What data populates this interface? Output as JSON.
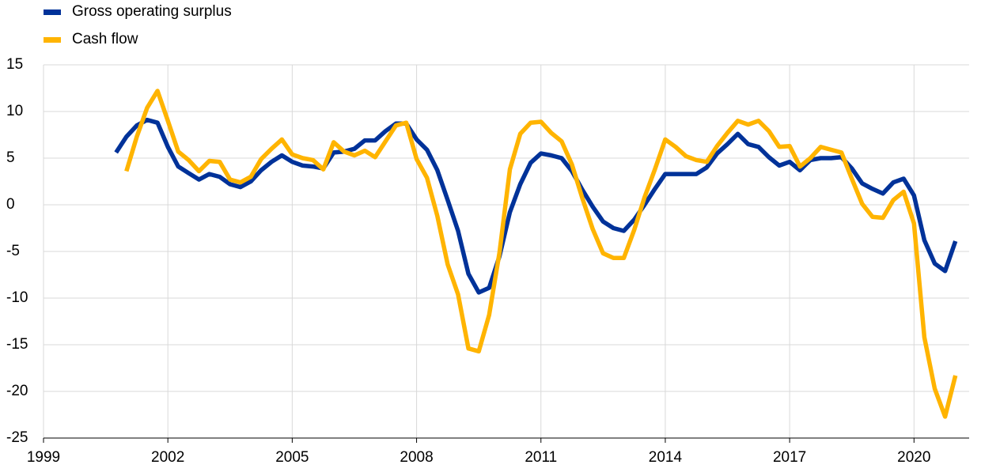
{
  "chart_data": {
    "type": "line",
    "x": [
      2000.75,
      2001,
      2001.25,
      2001.5,
      2001.75,
      2002,
      2002.25,
      2002.5,
      2002.75,
      2003,
      2003.25,
      2003.5,
      2003.75,
      2004,
      2004.25,
      2004.5,
      2004.75,
      2005,
      2005.25,
      2005.5,
      2005.75,
      2006,
      2006.25,
      2006.5,
      2006.75,
      2007,
      2007.25,
      2007.5,
      2007.75,
      2008,
      2008.25,
      2008.5,
      2008.75,
      2009,
      2009.25,
      2009.5,
      2009.75,
      2010,
      2010.25,
      2010.5,
      2010.75,
      2011,
      2011.25,
      2011.5,
      2011.75,
      2012,
      2012.25,
      2012.5,
      2012.75,
      2013,
      2013.25,
      2013.5,
      2013.75,
      2014,
      2014.25,
      2014.5,
      2014.75,
      2015,
      2015.25,
      2015.5,
      2015.75,
      2016,
      2016.25,
      2016.5,
      2016.75,
      2017,
      2017.25,
      2017.5,
      2017.75,
      2018,
      2018.25,
      2018.5,
      2018.75,
      2019,
      2019.25,
      2019.5,
      2019.75,
      2020,
      2020.25,
      2020.5,
      2020.75,
      2021
    ],
    "series": [
      {
        "name": "Gross operating surplus",
        "color": "#003299",
        "values": [
          5.6,
          7.3,
          8.5,
          9.1,
          8.8,
          6.2,
          4.1,
          3.4,
          2.7,
          3.3,
          3.0,
          2.2,
          1.9,
          2.5,
          3.7,
          4.6,
          5.3,
          4.6,
          4.2,
          4.1,
          3.9,
          5.6,
          5.7,
          6.0,
          6.9,
          6.9,
          7.9,
          8.7,
          8.7,
          7.0,
          5.9,
          3.7,
          0.5,
          -2.8,
          -7.4,
          -9.4,
          -8.9,
          -5.5,
          -0.8,
          2.2,
          4.5,
          5.5,
          5.3,
          5.0,
          3.6,
          1.6,
          -0.2,
          -1.8,
          -2.5,
          -2.8,
          -1.6,
          0.0,
          1.7,
          3.3,
          3.3,
          3.3,
          3.3,
          4.0,
          5.5,
          6.5,
          7.6,
          6.5,
          6.2,
          5.1,
          4.2,
          4.6,
          3.7,
          4.8,
          5.0,
          5.0,
          5.1,
          3.9,
          2.3,
          1.7,
          1.2,
          2.4,
          2.8,
          1.0,
          -3.8,
          -6.3,
          -7.1,
          -3.9
        ]
      },
      {
        "name": "Cash flow",
        "color": "#ffb400",
        "values": [
          null,
          3.6,
          7.3,
          10.4,
          12.2,
          9.0,
          5.7,
          4.8,
          3.6,
          4.7,
          4.6,
          2.7,
          2.4,
          3.0,
          4.9,
          6.0,
          7.0,
          5.4,
          5.0,
          4.8,
          3.8,
          6.7,
          5.7,
          5.3,
          5.8,
          5.1,
          6.8,
          8.5,
          8.8,
          4.9,
          2.9,
          -1.2,
          -6.4,
          -9.6,
          -15.4,
          -15.7,
          -11.8,
          -5.1,
          3.8,
          7.6,
          8.8,
          8.9,
          7.7,
          6.8,
          4.3,
          0.7,
          -2.6,
          -5.2,
          -5.7,
          -5.7,
          -2.7,
          0.8,
          3.8,
          7.0,
          6.2,
          5.2,
          4.8,
          4.6,
          6.3,
          7.7,
          9.0,
          8.6,
          9.0,
          7.9,
          6.2,
          6.3,
          4.1,
          5.0,
          6.2,
          5.9,
          5.6,
          2.8,
          0.1,
          -1.3,
          -1.4,
          0.5,
          1.4,
          -2.0,
          -14.2,
          -19.7,
          -22.7,
          -18.3
        ]
      }
    ],
    "xlim": [
      1999,
      2021.33
    ],
    "xticks": [
      1999,
      2002,
      2005,
      2008,
      2011,
      2014,
      2017,
      2020
    ],
    "ylim": [
      -25,
      15
    ],
    "yticks": [
      -25,
      -20,
      -15,
      -10,
      -5,
      0,
      5,
      10,
      15
    ],
    "grid": true
  }
}
